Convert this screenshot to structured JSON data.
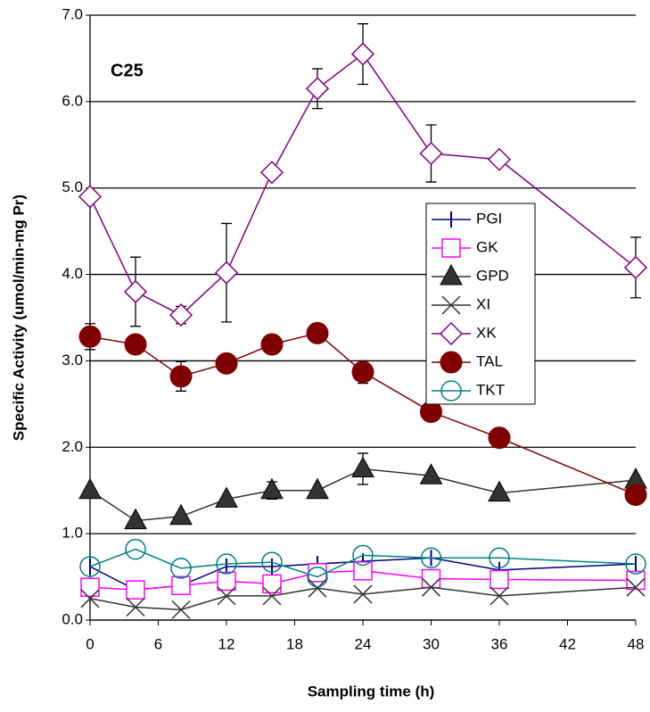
{
  "chart_data": {
    "type": "line",
    "annotation": "C25",
    "x_label": "Sampling time (h)",
    "y_label": "Specific Activity (umol/min-mg Pr)",
    "x": [
      0,
      4,
      8,
      12,
      16,
      20,
      24,
      30,
      36,
      48
    ],
    "xlim": [
      0,
      48
    ],
    "xticks": [
      0,
      6,
      12,
      18,
      24,
      30,
      36,
      42,
      48
    ],
    "ylim": [
      0,
      7
    ],
    "yticks": [
      {
        "value": 0,
        "label": "0.0"
      },
      {
        "value": 1,
        "label": "1.0"
      },
      {
        "value": 2,
        "label": "2.0"
      },
      {
        "value": 3,
        "label": "3.0"
      },
      {
        "value": 4,
        "label": "4.0"
      },
      {
        "value": 5,
        "label": "5.0"
      },
      {
        "value": 6,
        "label": "6.0"
      },
      {
        "value": 7,
        "label": "7.0"
      }
    ],
    "grid": true,
    "series": [
      {
        "name": "PGI",
        "color": "#000080",
        "marker": "vline",
        "values": [
          0.62,
          0.35,
          0.4,
          0.62,
          0.62,
          0.65,
          0.68,
          0.72,
          0.58,
          0.65
        ]
      },
      {
        "name": "GK",
        "color": "#ff00ff",
        "marker": "square",
        "values": [
          0.38,
          0.35,
          0.4,
          0.45,
          0.42,
          0.55,
          0.57,
          0.48,
          0.47,
          0.46
        ]
      },
      {
        "name": "GPD",
        "color": "#333333",
        "marker": "triangle",
        "values": [
          1.5,
          1.15,
          1.2,
          1.4,
          1.5,
          1.5,
          1.75,
          1.67,
          1.47,
          1.62
        ],
        "errors": [
          null,
          null,
          null,
          null,
          0.1,
          null,
          0.18,
          null,
          null,
          null
        ]
      },
      {
        "name": "XI",
        "color": "#333333",
        "marker": "x",
        "values": [
          0.25,
          0.15,
          0.12,
          0.28,
          0.28,
          0.37,
          0.3,
          0.38,
          0.28,
          0.38
        ]
      },
      {
        "name": "XK",
        "color": "#800080",
        "marker": "diamond",
        "values": [
          4.9,
          3.8,
          3.53,
          4.02,
          5.18,
          6.15,
          6.55,
          5.4,
          5.33,
          4.08
        ],
        "errors": [
          0.05,
          0.4,
          0.1,
          0.57,
          0.03,
          0.23,
          0.35,
          0.33,
          0.02,
          0.35
        ]
      },
      {
        "name": "TAL",
        "color": "#800000",
        "marker": "circle",
        "values": [
          3.28,
          3.19,
          2.82,
          2.97,
          3.19,
          3.32,
          2.87,
          2.41,
          2.11,
          1.45
        ],
        "errors": [
          0.15,
          null,
          0.17,
          null,
          null,
          null,
          0.13,
          0.05,
          0.05,
          null
        ]
      },
      {
        "name": "TKT",
        "color": "#008080",
        "marker": "circle-open",
        "values": [
          0.62,
          0.82,
          0.6,
          0.65,
          0.67,
          0.5,
          0.75,
          0.72,
          0.72,
          0.65
        ]
      }
    ]
  }
}
